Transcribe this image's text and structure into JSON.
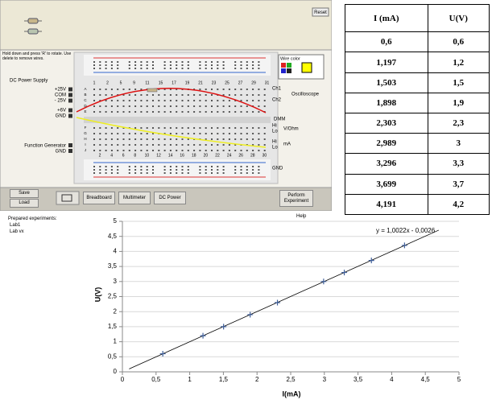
{
  "simulator": {
    "reset": "Reset",
    "hint": "Hold down and press 'R' to rotate. Use delete to remove wires.",
    "power_supply": {
      "title": "DC Power Supply",
      "labels": [
        "+25V",
        "COM",
        "- 25V",
        "+6V",
        "GND"
      ]
    },
    "function_generator": {
      "title": "Function Generator",
      "gnd": "GND"
    },
    "oscilloscope": {
      "title": "Oscilloscope",
      "channels": [
        "Ch1",
        "Ch2"
      ]
    },
    "dmm": {
      "title": "DMM",
      "v_ohm": "V/Ohm",
      "ma": "mA",
      "terminals": [
        "Hi",
        "Lo",
        "Hi",
        "Lo"
      ]
    },
    "gnd": "GND",
    "wire_color": "Wire color",
    "column_numbers_top": [
      "1",
      "2",
      "5",
      "9",
      "11",
      "15",
      "17",
      "19",
      "21",
      "23",
      "25",
      "27",
      "29",
      "31"
    ],
    "column_numbers_bottom": [
      "2",
      "4",
      "6",
      "8",
      "10",
      "12",
      "14",
      "16",
      "18",
      "20",
      "22",
      "24",
      "26",
      "28",
      "30"
    ],
    "row_letters": [
      "A",
      "B",
      "C",
      "D",
      "E",
      "F",
      "G",
      "H",
      "I",
      "J"
    ],
    "buttons": [
      "Save",
      "Load",
      "Breadboard",
      "Multimeter",
      "DC Power",
      "Perform Experiment"
    ]
  },
  "sidebar": {
    "title": "Prepared experiments:",
    "items": [
      "Lab1",
      "Lab vx"
    ]
  },
  "help": "Help",
  "table": {
    "header": [
      "I (mA)",
      "U(V)"
    ],
    "rows": [
      [
        "0,6",
        "0,6"
      ],
      [
        "1,197",
        "1,2"
      ],
      [
        "1,503",
        "1,5"
      ],
      [
        "1,898",
        "1,9"
      ],
      [
        "2,303",
        "2,3"
      ],
      [
        "2,989",
        "3"
      ],
      [
        "3,296",
        "3,3"
      ],
      [
        "3,699",
        "3,7"
      ],
      [
        "4,191",
        "4,2"
      ]
    ]
  },
  "chart_data": {
    "type": "scatter",
    "x_label": "I(mA)",
    "y_label": "U(V)",
    "series": [
      {
        "color": "#3f5f9a",
        "x": [
          0.6,
          1.197,
          1.503,
          1.898,
          2.303,
          2.989,
          3.296,
          3.699,
          4.191
        ],
        "values": [
          0.6,
          1.2,
          1.5,
          1.9,
          2.3,
          3,
          3.3,
          3.7,
          4.2
        ]
      }
    ],
    "trendline": {
      "label": "y = 1,0022x - 0,0026",
      "slope": 1.0022,
      "intercept": -0.0026,
      "x": [
        0.1,
        4.7
      ],
      "color": "#000000"
    },
    "xlim": [
      0,
      5
    ],
    "ylim": [
      0,
      5
    ],
    "xticks": [
      0,
      {
        "value": 0.5,
        "label": "0,5"
      },
      1,
      {
        "value": 1.5,
        "label": "1,5"
      },
      2,
      {
        "value": 2.5,
        "label": "2,5"
      },
      3,
      {
        "value": 3.5,
        "label": "3,5"
      },
      4,
      {
        "value": 4.5,
        "label": "4,5"
      },
      5
    ],
    "yticks": [
      0,
      {
        "value": 0.5,
        "label": "0,5"
      },
      1,
      {
        "value": 1.5,
        "label": "1,5"
      },
      2,
      {
        "value": 2.5,
        "label": "2,5"
      },
      3,
      {
        "value": 3.5,
        "label": "3,5"
      },
      4,
      {
        "value": 4.5,
        "label": "4,5"
      },
      5
    ],
    "grid": true
  }
}
